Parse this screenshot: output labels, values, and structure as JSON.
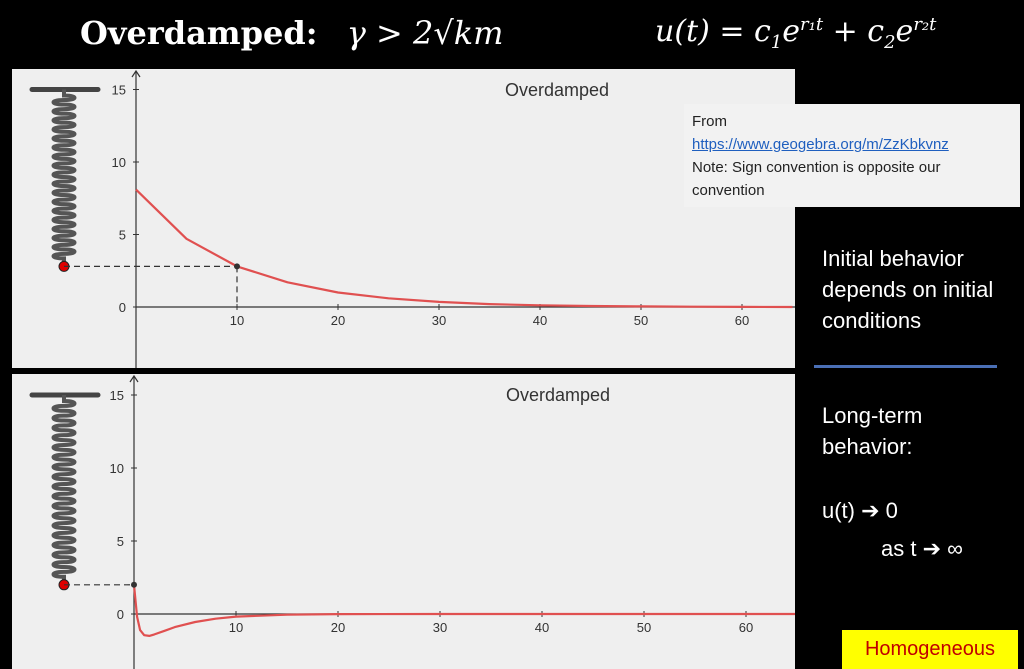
{
  "header": {
    "title": "Overdamped:",
    "condition": "γ > 2√km",
    "formula_lhs": "u(t) = c",
    "formula_sub1": "1",
    "formula_e1": "e",
    "formula_sup1": "r₁t",
    "formula_plus": " + c",
    "formula_sub2": "2",
    "formula_e2": "e",
    "formula_sup2": "r₂t"
  },
  "source": {
    "from_label": "From",
    "url": "https://www.geogebra.org/m/ZzKbkvnz",
    "note": "Note: Sign convention is opposite our convention"
  },
  "notes": {
    "initial": "Initial behavior depends on initial conditions",
    "longterm": "Long-term behavior:",
    "limit": "u(t) ➔ 0",
    "astime": "as t ➔ ∞"
  },
  "badge": "Homogeneous",
  "colors": {
    "curve": "#e05050",
    "mass": "#e00000",
    "spring": "#555555",
    "divider": "#4a6fb5",
    "badge_bg": "#ffff00",
    "badge_text": "#c00000"
  },
  "chart_data": [
    {
      "type": "line",
      "title": "Overdamped",
      "xlabel": "",
      "ylabel": "",
      "xlim": [
        0,
        65
      ],
      "ylim": [
        -4,
        16
      ],
      "xticks": [
        10,
        20,
        30,
        40,
        50,
        60
      ],
      "yticks": [
        0,
        5,
        10,
        15
      ],
      "grid": false,
      "series": [
        {
          "x": [
            0,
            5,
            10,
            15,
            20,
            25,
            30,
            35,
            40,
            45,
            50,
            55,
            60,
            65
          ],
          "y": [
            8.1,
            4.7,
            2.8,
            1.7,
            1.0,
            0.6,
            0.35,
            0.2,
            0.12,
            0.07,
            0.04,
            0.02,
            0.01,
            0.0
          ]
        }
      ],
      "marker": {
        "x": 10,
        "y": 2.8
      }
    },
    {
      "type": "line",
      "title": "Overdamped",
      "xlabel": "",
      "ylabel": "",
      "xlim": [
        0,
        65
      ],
      "ylim": [
        -4,
        16
      ],
      "xticks": [
        10,
        20,
        30,
        40,
        50,
        60
      ],
      "yticks": [
        0,
        5,
        10,
        15
      ],
      "grid": false,
      "series": [
        {
          "x": [
            0,
            0.3,
            0.6,
            1,
            1.5,
            2,
            3,
            4,
            6,
            8,
            10,
            15,
            20,
            30,
            40,
            65
          ],
          "y": [
            2.0,
            -0.2,
            -1.1,
            -1.45,
            -1.5,
            -1.4,
            -1.15,
            -0.9,
            -0.55,
            -0.32,
            -0.18,
            -0.05,
            -0.01,
            0,
            0,
            0
          ]
        }
      ],
      "marker": {
        "x": 0,
        "y": 2.0
      }
    }
  ]
}
